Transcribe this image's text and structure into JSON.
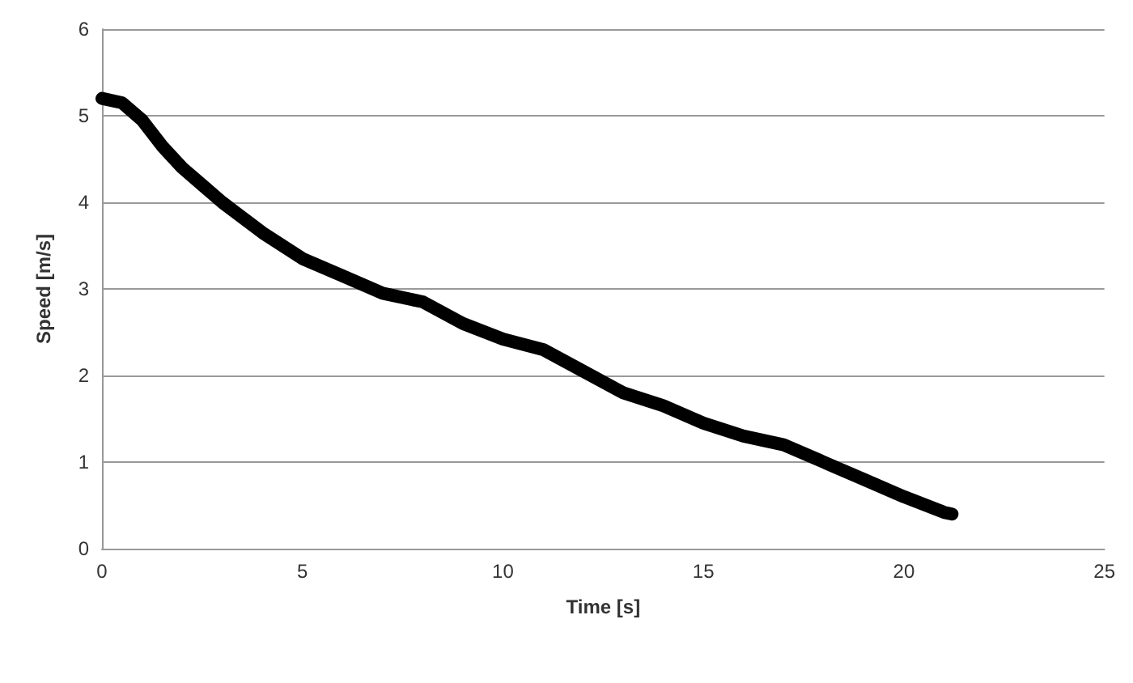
{
  "chart_data": {
    "type": "line",
    "xlabel": "Time [s]",
    "ylabel": "Speed [m/s]",
    "x": [
      0,
      0.5,
      1,
      1.5,
      2,
      2.5,
      3,
      4,
      5,
      6,
      7,
      8,
      9,
      10,
      11,
      12,
      13,
      14,
      15,
      16,
      17,
      18,
      19,
      20,
      21,
      21.2
    ],
    "series": [
      {
        "color": "#000000",
        "values": [
          5.2,
          5.15,
          4.95,
          4.65,
          4.4,
          4.2,
          4.0,
          3.65,
          3.35,
          3.15,
          2.95,
          2.85,
          2.6,
          2.42,
          2.3,
          2.05,
          1.8,
          1.65,
          1.45,
          1.3,
          1.2,
          1.0,
          0.8,
          0.6,
          0.42,
          0.4
        ]
      }
    ],
    "xlim": [
      0,
      25
    ],
    "xticks": [
      0,
      5,
      10,
      15,
      20,
      25
    ],
    "ylim": [
      0,
      6
    ],
    "yticks": [
      0,
      1,
      2,
      3,
      4,
      5,
      6
    ],
    "grid": "y",
    "line_style": "solid"
  }
}
